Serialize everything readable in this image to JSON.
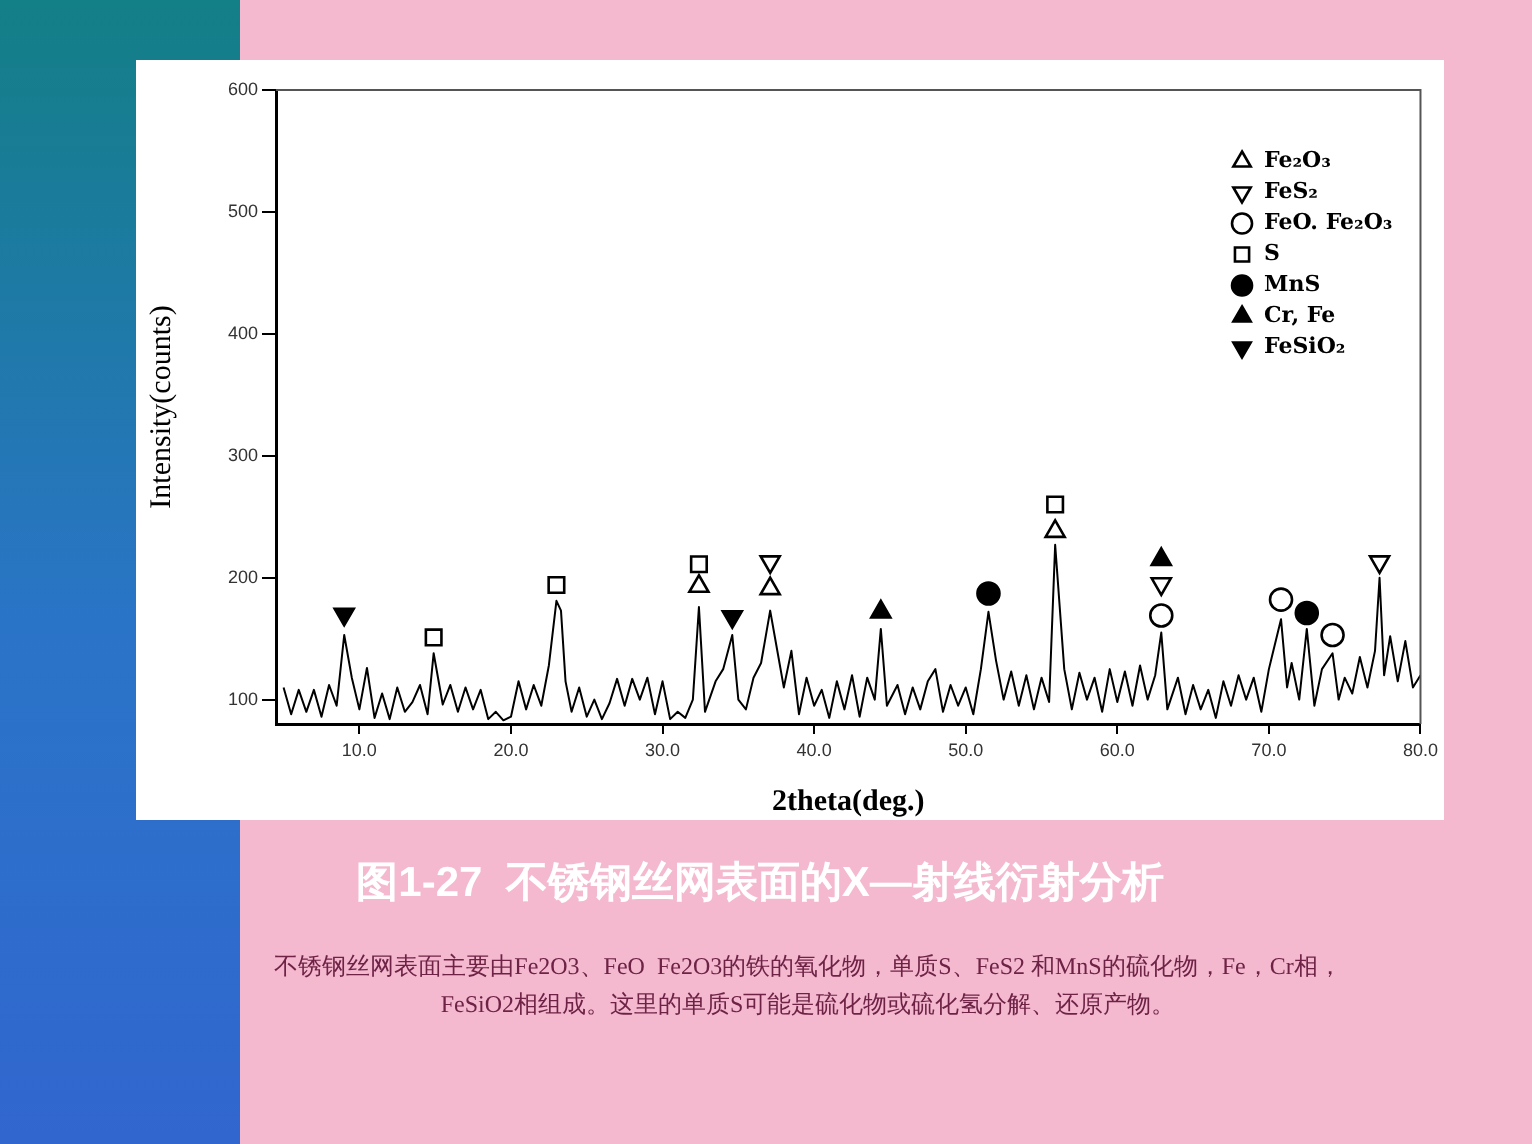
{
  "chart_data": {
    "type": "line",
    "title": "图1-27  不锈钢丝网表面的X—射线衍射分析",
    "xlabel": "2theta(deg.)",
    "ylabel": "Intensity(counts)",
    "annotations": [
      "不锈钢丝网表面主要由Fe2O3、FeO  Fe2O3的铁的氧化物，单质S、FeS2 和MnS的硫化物，Fe，Cr相，FeSiO2相组成。这里的单质S可能是硫化物或硫化氢分解、还原产物。"
    ],
    "xlim": [
      4.5,
      80
    ],
    "xticks": [
      {
        "value": 10,
        "label": "10.0"
      },
      {
        "value": 20,
        "label": "20.0"
      },
      {
        "value": 30,
        "label": "30.0"
      },
      {
        "value": 40,
        "label": "40.0"
      },
      {
        "value": 50,
        "label": "50.0"
      },
      {
        "value": 60,
        "label": "60.0"
      },
      {
        "value": 70,
        "label": "70.0"
      },
      {
        "value": 80,
        "label": "80.0"
      }
    ],
    "ylim": [
      80,
      600
    ],
    "yticks": [
      100,
      200,
      300,
      400,
      500,
      600
    ],
    "legend": "top right",
    "series": [
      {
        "type": "line",
        "color": "#000000",
        "x": [
          5,
          5.5,
          6,
          6.5,
          7,
          7.5,
          8,
          8.5,
          9,
          9.5,
          10,
          10.5,
          11,
          11.5,
          12,
          12.5,
          13,
          13.5,
          14,
          14.5,
          14.9,
          15.5,
          16,
          16.5,
          17,
          17.5,
          18,
          18.5,
          19,
          19.5,
          20,
          20.5,
          21,
          21.5,
          22,
          22.5,
          23,
          23.3,
          23.6,
          24,
          24.5,
          25,
          25.5,
          26,
          26.5,
          27,
          27.5,
          28,
          28.5,
          29,
          29.5,
          30,
          30.5,
          31,
          31.5,
          32,
          32.4,
          32.8,
          33.5,
          34,
          34.6,
          35,
          35.5,
          36,
          36.5,
          37.1,
          37.5,
          38,
          38.5,
          39,
          39.5,
          40,
          40.5,
          41,
          41.5,
          42,
          42.5,
          43,
          43.5,
          44,
          44.4,
          44.8,
          45.5,
          46,
          46.5,
          47,
          47.5,
          48,
          48.5,
          49,
          49.5,
          50,
          50.5,
          51,
          51.5,
          52,
          52.5,
          53,
          53.5,
          54,
          54.5,
          55,
          55.5,
          55.9,
          56.5,
          57,
          57.5,
          58,
          58.5,
          59,
          59.5,
          60,
          60.5,
          61,
          61.5,
          62,
          62.5,
          62.9,
          63.3,
          64,
          64.5,
          65,
          65.5,
          66,
          66.5,
          67,
          67.5,
          68,
          68.5,
          69,
          69.5,
          70,
          70.8,
          71.2,
          71.5,
          72,
          72.5,
          73,
          73.5,
          74.2,
          74.6,
          75,
          75.5,
          76,
          76.5,
          77,
          77.3,
          77.6,
          78,
          78.5,
          79,
          79.5,
          80
        ],
        "values": [
          110,
          88,
          108,
          90,
          108,
          86,
          112,
          95,
          153,
          118,
          92,
          126,
          85,
          105,
          84,
          110,
          90,
          98,
          112,
          88,
          138,
          96,
          112,
          90,
          110,
          92,
          108,
          84,
          90,
          83,
          86,
          115,
          92,
          112,
          95,
          128,
          181,
          173,
          115,
          90,
          110,
          86,
          100,
          84,
          97,
          117,
          95,
          117,
          100,
          118,
          88,
          115,
          84,
          90,
          85,
          100,
          176,
          90,
          115,
          125,
          153,
          100,
          92,
          118,
          130,
          173,
          145,
          110,
          140,
          88,
          118,
          95,
          108,
          85,
          115,
          92,
          120,
          86,
          118,
          100,
          158,
          95,
          112,
          88,
          110,
          92,
          115,
          125,
          90,
          112,
          95,
          110,
          88,
          125,
          172,
          132,
          100,
          123,
          95,
          120,
          92,
          118,
          98,
          227,
          125,
          92,
          122,
          100,
          118,
          90,
          125,
          98,
          123,
          95,
          128,
          100,
          120,
          155,
          92,
          118,
          88,
          112,
          92,
          108,
          85,
          115,
          95,
          120,
          100,
          118,
          90,
          125,
          166,
          110,
          130,
          100,
          158,
          95,
          125,
          138,
          100,
          118,
          105,
          135,
          110,
          140,
          200,
          120,
          152,
          115,
          148,
          110,
          120
        ]
      },
      {
        "type": "scatter",
        "name": "Fe₂O₃",
        "color": "#000000",
        "marker": "triangle-open",
        "x": [
          32.4,
          37.1,
          55.9
        ],
        "values": [
          193,
          191,
          238
        ]
      },
      {
        "type": "scatter",
        "name": "FeS₂",
        "color": "#000000",
        "marker": "triangle-down-open",
        "x": [
          37.1,
          62.9,
          77.3
        ],
        "values": [
          213,
          195,
          213
        ]
      },
      {
        "type": "scatter",
        "name": "FeO. Fe₂O₃",
        "color": "#000000",
        "marker": "circle-open",
        "x": [
          62.9,
          70.8,
          74.2
        ],
        "values": [
          169,
          182,
          153
        ]
      },
      {
        "type": "scatter",
        "name": "S",
        "color": "#000000",
        "marker": "square-open",
        "x": [
          14.9,
          23,
          32.4,
          55.9
        ],
        "values": [
          151,
          194,
          211,
          260
        ]
      },
      {
        "type": "scatter",
        "name": "MnS",
        "color": "#000000",
        "marker": "circle",
        "x": [
          51.5,
          72.5
        ],
        "values": [
          187,
          171
        ]
      },
      {
        "type": "scatter",
        "name": "Cr, Fe",
        "color": "#000000",
        "marker": "triangle",
        "x": [
          44.4,
          62.9
        ],
        "values": [
          172,
          215
        ]
      },
      {
        "type": "scatter",
        "name": "FeSiO₂",
        "color": "#000000",
        "marker": "triangle-down",
        "x": [
          9,
          34.6
        ],
        "values": [
          170,
          168
        ]
      }
    ]
  }
}
